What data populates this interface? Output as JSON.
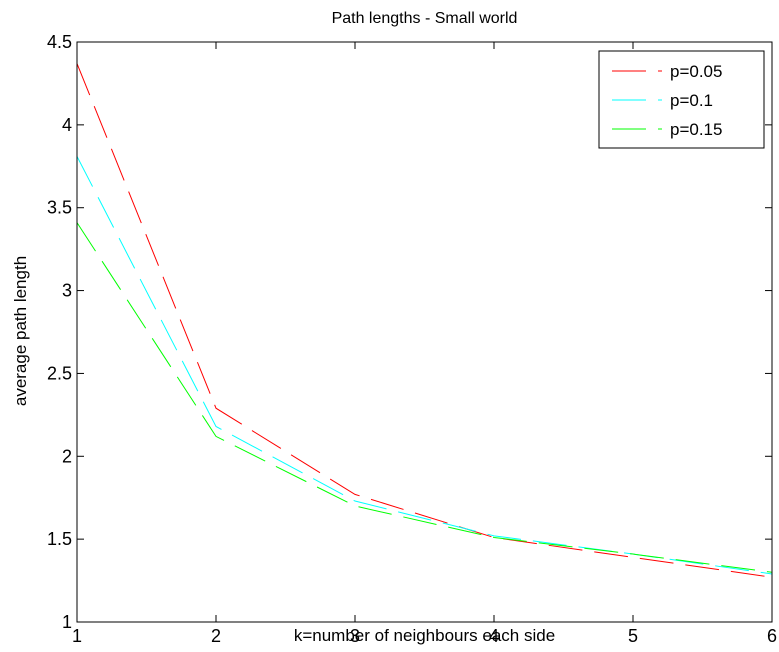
{
  "chart_data": {
    "type": "line",
    "title": "Path lengths - Small world",
    "xlabel": "k=number of neighbours each side",
    "ylabel": "average path length",
    "x": [
      1,
      2,
      3,
      4,
      5,
      6
    ],
    "xlim": [
      1,
      6
    ],
    "ylim": [
      1,
      4.5
    ],
    "xticks": [
      1,
      2,
      3,
      4,
      5,
      6
    ],
    "yticks": [
      1,
      1.5,
      2,
      2.5,
      3,
      3.5,
      4,
      4.5
    ],
    "xtick_labels": [
      "1",
      "2",
      "3",
      "4",
      "5",
      "6"
    ],
    "ytick_labels": [
      "1",
      "1.5",
      "2",
      "2.5",
      "3",
      "3.5",
      "4",
      "4.5"
    ],
    "grid": false,
    "legend_position": "top-right",
    "line_style": "dashed",
    "series": [
      {
        "name": "p=0.05",
        "color": "#ff0000",
        "values": [
          4.37,
          2.29,
          1.77,
          1.51,
          1.39,
          1.27
        ]
      },
      {
        "name": "p=0.1",
        "color": "#00ffff",
        "values": [
          3.81,
          2.18,
          1.73,
          1.52,
          1.41,
          1.29
        ]
      },
      {
        "name": "p=0.15",
        "color": "#00ff00",
        "values": [
          3.41,
          2.12,
          1.7,
          1.51,
          1.41,
          1.3
        ]
      }
    ]
  }
}
